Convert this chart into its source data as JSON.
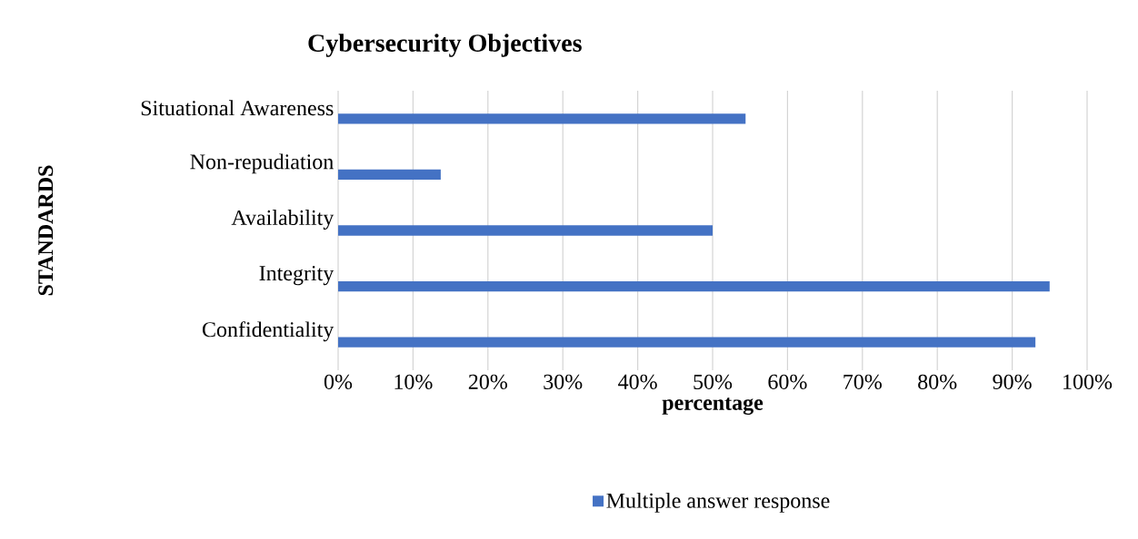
{
  "chart_data": {
    "type": "bar",
    "orientation": "horizontal",
    "title": "Cybersecurity Objectives",
    "xlabel": "percentage",
    "ylabel": "STANDARDS",
    "categories": [
      "Situational Awareness",
      "Non-repudiation",
      "Availability",
      "Integrity",
      "Confidentiality"
    ],
    "series": [
      {
        "name": "Multiple answer response",
        "color": "#4472c4",
        "values": [
          54.4,
          13.7,
          50,
          95,
          93.1
        ]
      }
    ],
    "xlim": [
      0,
      100
    ],
    "xticks": [
      {
        "value": 0,
        "label": "0%"
      },
      {
        "value": 10,
        "label": "10%"
      },
      {
        "value": 20,
        "label": "20%"
      },
      {
        "value": 30,
        "label": "30%"
      },
      {
        "value": 40,
        "label": "40%"
      },
      {
        "value": 50,
        "label": "50%"
      },
      {
        "value": 60,
        "label": "60%"
      },
      {
        "value": 70,
        "label": "70%"
      },
      {
        "value": 80,
        "label": "80%"
      },
      {
        "value": 90,
        "label": "90%"
      },
      {
        "value": 100,
        "label": "100%"
      }
    ],
    "grid": "x",
    "legend": "bottom"
  }
}
